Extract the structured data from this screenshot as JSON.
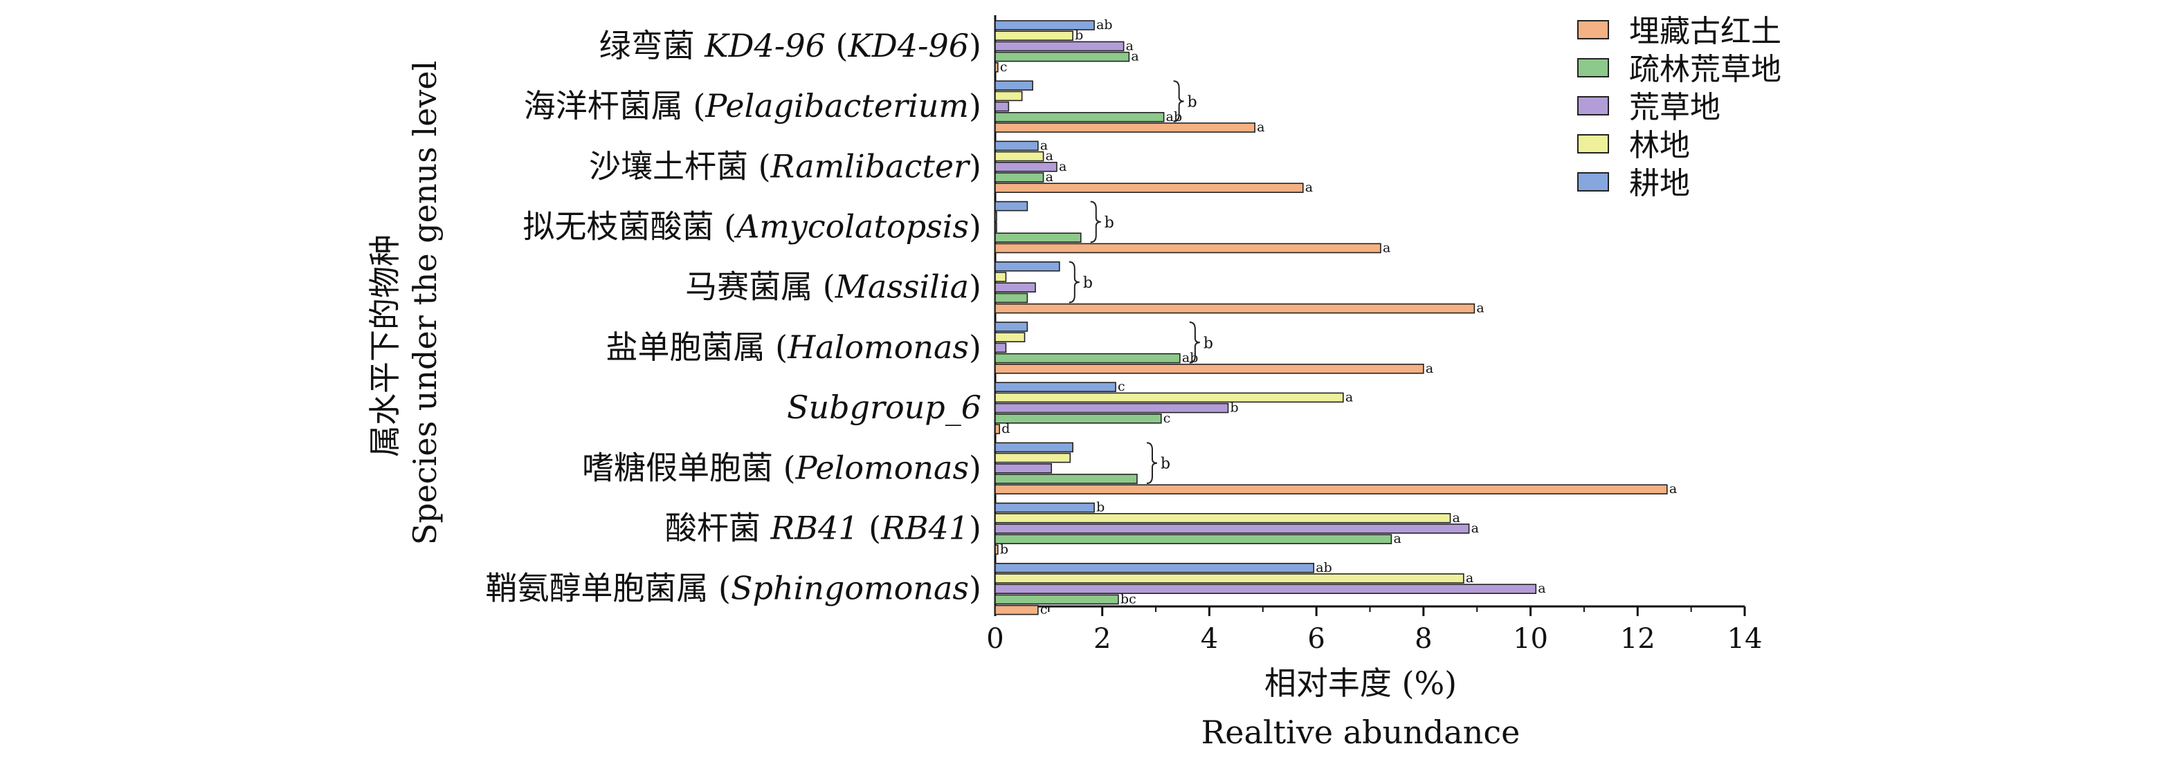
{
  "chart_data": {
    "type": "bar",
    "orientation": "horizontal",
    "xlabel": "相对丰度 (%)",
    "xlabel_en": "Realtive abundance",
    "ylabel": "属水平下的物种",
    "ylabel_en": "Species under the genus level",
    "xlim": [
      0,
      14
    ],
    "xticks": [
      "0",
      "2",
      "4",
      "6",
      "8",
      "10",
      "12",
      "14"
    ],
    "legend_position": "top-right",
    "categories": [
      {
        "zh": "绿弯菌 ",
        "italic": "KD4-96",
        "mid": " (",
        "italic2": "KD4-96",
        "end": ")"
      },
      {
        "zh": "海洋杆菌属 (",
        "italic": "Pelagibacterium",
        "mid": "",
        "italic2": "",
        "end": ")"
      },
      {
        "zh": "沙壤土杆菌 (",
        "italic": "Ramlibacter",
        "mid": "",
        "italic2": "",
        "end": ")"
      },
      {
        "zh": "拟无枝菌酸菌 (",
        "italic": "Amycolatopsis",
        "mid": "",
        "italic2": "",
        "end": ")"
      },
      {
        "zh": "马赛菌属 (",
        "italic": "Massilia",
        "mid": "",
        "italic2": "",
        "end": ")"
      },
      {
        "zh": "盐单胞菌属 (",
        "italic": "Halomonas",
        "mid": "",
        "italic2": "",
        "end": ")"
      },
      {
        "zh": "",
        "italic": "Subgroup_6",
        "mid": "",
        "italic2": "",
        "end": ""
      },
      {
        "zh": "嗜糖假单胞菌 (",
        "italic": "Pelomonas",
        "mid": "",
        "italic2": "",
        "end": ")"
      },
      {
        "zh": "酸杆菌 ",
        "italic": "RB41",
        "mid": " (",
        "italic2": "RB41",
        "end": ")"
      },
      {
        "zh": "鞘氨醇单胞菌属 (",
        "italic": "Sphingomonas",
        "mid": "",
        "italic2": "",
        "end": ")"
      }
    ],
    "series": [
      {
        "name": "埋藏古红土",
        "color": "#F4B183",
        "values": [
          0.05,
          4.85,
          5.75,
          7.2,
          8.95,
          8.0,
          0.08,
          12.55,
          0.05,
          0.8
        ],
        "labels": [
          "c",
          "a",
          "a",
          "a",
          "a",
          "a",
          "d",
          "a",
          "b",
          "c"
        ]
      },
      {
        "name": "疏林荒草地",
        "color": "#8DC98A",
        "values": [
          2.5,
          3.15,
          0.9,
          1.6,
          0.6,
          3.45,
          3.1,
          2.65,
          7.4,
          2.3
        ],
        "labels": [
          "a",
          "ab",
          "a",
          "",
          "",
          "ab",
          "c",
          "",
          "a",
          "bc"
        ]
      },
      {
        "name": "荒草地",
        "color": "#B39DD8",
        "values": [
          2.4,
          0.25,
          1.15,
          0.02,
          0.75,
          0.2,
          4.35,
          1.05,
          8.85,
          10.1
        ],
        "labels": [
          "a",
          "",
          "a",
          "",
          "",
          "",
          "b",
          "",
          "a",
          "a"
        ]
      },
      {
        "name": "林地",
        "color": "#EEF09A",
        "values": [
          1.45,
          0.5,
          0.9,
          0.02,
          0.2,
          0.55,
          6.5,
          1.4,
          8.5,
          8.75
        ],
        "labels": [
          "b",
          "",
          "a",
          "",
          "",
          "",
          "a",
          "",
          "a",
          "a"
        ]
      },
      {
        "name": "耕地",
        "color": "#86A6DE",
        "values": [
          1.85,
          0.7,
          0.8,
          0.6,
          1.2,
          0.6,
          2.25,
          1.45,
          1.85,
          5.95
        ],
        "labels": [
          "ab",
          "",
          "a",
          "",
          "",
          "",
          "c",
          "",
          "b",
          "ab"
        ]
      }
    ],
    "group_brackets": [
      {
        "category_index": 1,
        "label": "b"
      },
      {
        "category_index": 3,
        "label": "b"
      },
      {
        "category_index": 4,
        "label": "b"
      },
      {
        "category_index": 5,
        "label": "b"
      },
      {
        "category_index": 7,
        "label": "b"
      }
    ]
  }
}
